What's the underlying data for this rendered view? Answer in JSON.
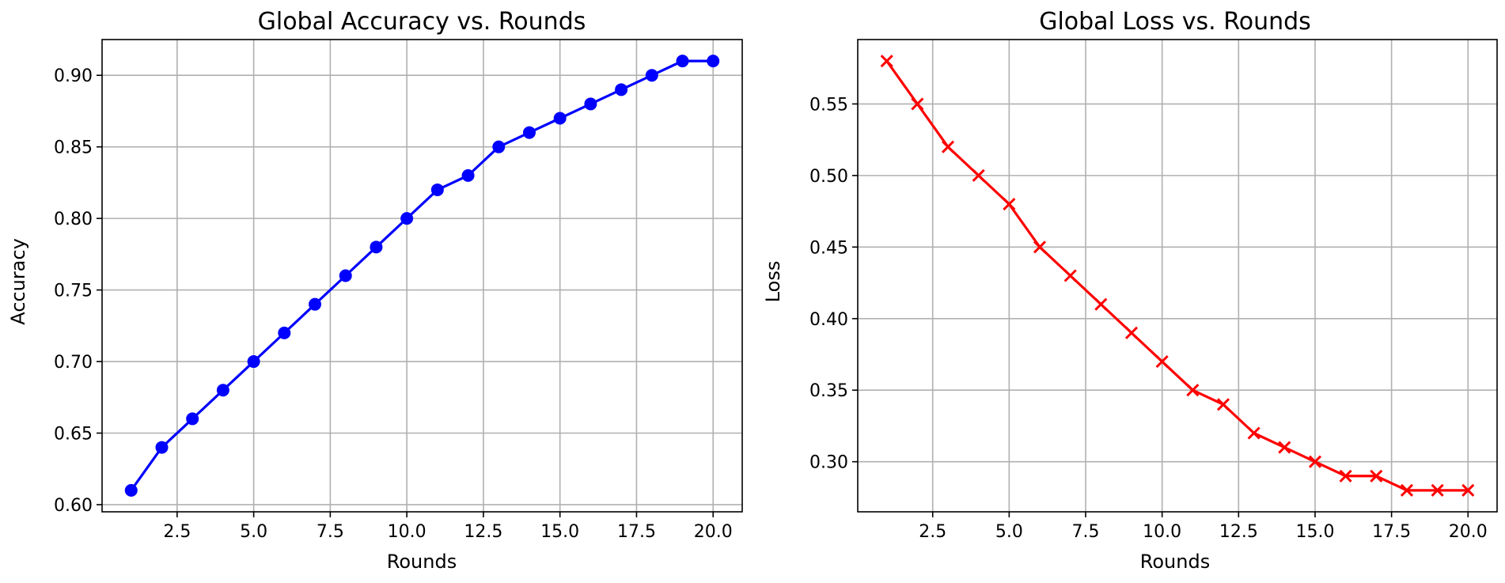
{
  "chart_data": [
    {
      "type": "line",
      "title": "Global Accuracy vs. Rounds",
      "xlabel": "Rounds",
      "ylabel": "Accuracy",
      "xlim": [
        0.05,
        20.95
      ],
      "ylim": [
        0.595,
        0.925
      ],
      "xticks": [
        2.5,
        5.0,
        7.5,
        10.0,
        12.5,
        15.0,
        17.5,
        20.0
      ],
      "xtick_labels": [
        "2.5",
        "5.0",
        "7.5",
        "10.0",
        "12.5",
        "15.0",
        "17.5",
        "20.0"
      ],
      "yticks": [
        0.6,
        0.65,
        0.7,
        0.75,
        0.8,
        0.85,
        0.9
      ],
      "ytick_labels": [
        "0.60",
        "0.65",
        "0.70",
        "0.75",
        "0.80",
        "0.85",
        "0.90"
      ],
      "grid": true,
      "x": [
        1,
        2,
        3,
        4,
        5,
        6,
        7,
        8,
        9,
        10,
        11,
        12,
        13,
        14,
        15,
        16,
        17,
        18,
        19,
        20
      ],
      "series": [
        {
          "values": [
            0.61,
            0.64,
            0.66,
            0.68,
            0.7,
            0.72,
            0.74,
            0.76,
            0.78,
            0.8,
            0.82,
            0.83,
            0.85,
            0.86,
            0.87,
            0.88,
            0.89,
            0.9,
            0.91,
            0.91
          ],
          "color": "#0000ff",
          "marker": "circle"
        }
      ]
    },
    {
      "type": "line",
      "title": "Global Loss vs. Rounds",
      "xlabel": "Rounds",
      "ylabel": "Loss",
      "xlim": [
        0.05,
        20.95
      ],
      "ylim": [
        0.265,
        0.595
      ],
      "xticks": [
        2.5,
        5.0,
        7.5,
        10.0,
        12.5,
        15.0,
        17.5,
        20.0
      ],
      "xtick_labels": [
        "2.5",
        "5.0",
        "7.5",
        "10.0",
        "12.5",
        "15.0",
        "17.5",
        "20.0"
      ],
      "yticks": [
        0.3,
        0.35,
        0.4,
        0.45,
        0.5,
        0.55
      ],
      "ytick_labels": [
        "0.30",
        "0.35",
        "0.40",
        "0.45",
        "0.50",
        "0.55"
      ],
      "grid": true,
      "x": [
        1,
        2,
        3,
        4,
        5,
        6,
        7,
        8,
        9,
        10,
        11,
        12,
        13,
        14,
        15,
        16,
        17,
        18,
        19,
        20
      ],
      "series": [
        {
          "values": [
            0.58,
            0.55,
            0.52,
            0.5,
            0.48,
            0.45,
            0.43,
            0.41,
            0.39,
            0.37,
            0.35,
            0.34,
            0.32,
            0.31,
            0.3,
            0.29,
            0.29,
            0.28,
            0.28,
            0.28
          ],
          "color": "#ff0000",
          "marker": "x"
        }
      ]
    }
  ]
}
